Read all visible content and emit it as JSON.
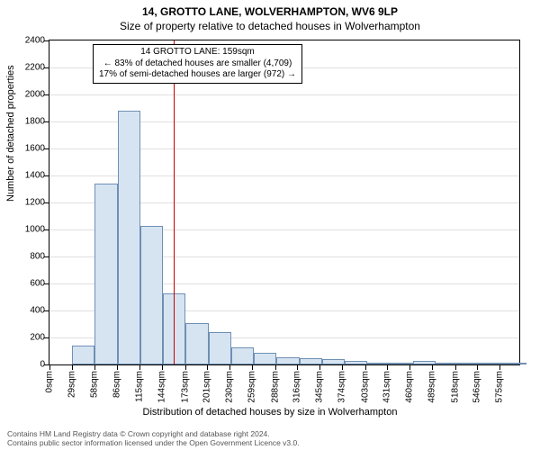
{
  "titles": {
    "line1": "14, GROTTO LANE, WOLVERHAMPTON, WV6 9LP",
    "line2": "Size of property relative to detached houses in Wolverhampton"
  },
  "chart": {
    "type": "histogram",
    "bar_fill": "#d6e4f2",
    "bar_stroke": "#6f8fb3",
    "background_color": "#ffffff",
    "grid_color": "#e0e0e0",
    "xlabel": "Distribution of detached houses by size in Wolverhampton",
    "ylabel": "Number of detached properties",
    "xlim": [
      0,
      600
    ],
    "ylim": [
      0,
      2400
    ],
    "ytick_step": 200,
    "xtick_labels": [
      "0sqm",
      "29sqm",
      "58sqm",
      "86sqm",
      "115sqm",
      "144sqm",
      "173sqm",
      "201sqm",
      "230sqm",
      "259sqm",
      "288sqm",
      "316sqm",
      "345sqm",
      "374sqm",
      "403sqm",
      "431sqm",
      "460sqm",
      "489sqm",
      "518sqm",
      "546sqm",
      "575sqm"
    ],
    "xtick_values": [
      0,
      29,
      58,
      86,
      115,
      144,
      173,
      201,
      230,
      259,
      288,
      316,
      345,
      374,
      403,
      431,
      460,
      489,
      518,
      546,
      575
    ],
    "bin_width": 29,
    "bins": [
      0,
      140,
      1340,
      1880,
      1030,
      530,
      310,
      240,
      130,
      85,
      55,
      50,
      38,
      30,
      6,
      6,
      30,
      4,
      4,
      3,
      3
    ],
    "reference_line": {
      "x": 159,
      "color": "#cc0000",
      "width": 1
    },
    "annotation": {
      "line1": "14 GROTTO LANE: 159sqm",
      "line2": "← 83% of detached houses are smaller (4,709)",
      "line3": "17% of semi-detached houses are larger (972) →",
      "border_color": "#000000",
      "bg_color": "#ffffff"
    }
  },
  "footer": {
    "line1": "Contains HM Land Registry data © Crown copyright and database right 2024.",
    "line2": "Contains public sector information licensed under the Open Government Licence v3.0."
  }
}
